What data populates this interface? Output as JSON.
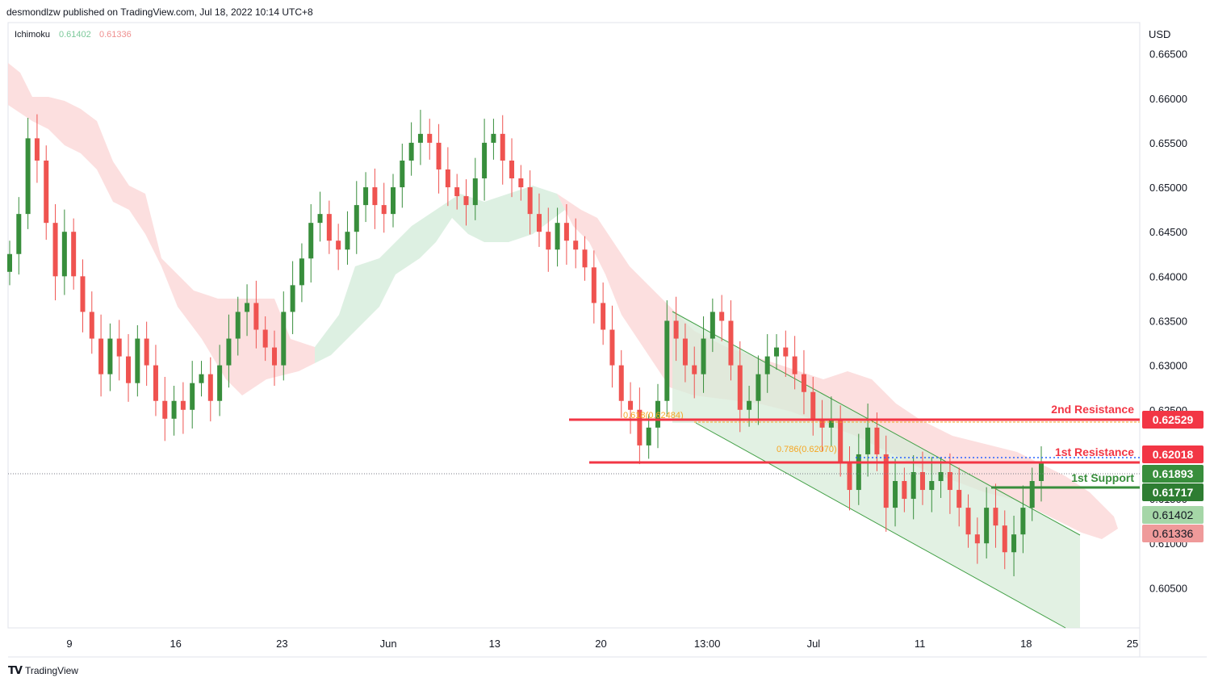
{
  "header": {
    "published": "desmondlzw published on TradingView.com, Jul 18, 2022 10:14 UTC+8"
  },
  "indicator": {
    "name": "Ichimoku",
    "val1": "0.61402",
    "val2": "0.61336"
  },
  "currency": "USD",
  "footer": {
    "brand": "TradingView"
  },
  "colors": {
    "up": "#26a69a",
    "upBody": "#388e3c",
    "down": "#ef5350",
    "cloudBull": "#d7eddd",
    "cloudBear": "#fbd9d9",
    "resistance": "#f23645",
    "support": "#388e3c",
    "channel": "#d8ecd9",
    "fib": "#f5a623"
  },
  "chart_data": {
    "type": "candlestick",
    "title": "",
    "ylim": [
      0.6005,
      0.6685
    ],
    "y_ticks": [
      "0.66500",
      "0.66000",
      "0.65500",
      "0.65000",
      "0.64500",
      "0.64000",
      "0.63500",
      "0.63000",
      "0.62500",
      "0.62000",
      "0.61500",
      "0.61000",
      "0.60500"
    ],
    "x_ticks": [
      "9",
      "16",
      "23",
      "Jun",
      "13",
      "20",
      "13:00",
      "Jul",
      "11",
      "18",
      "25"
    ],
    "levels": [
      {
        "label": "2nd Resistance",
        "value": 0.62529,
        "value_text": "0.62529",
        "kind": "resistance"
      },
      {
        "label": "1st Resistance",
        "value": 0.62018,
        "value_text": "0.62018",
        "kind": "resistance"
      },
      {
        "label": "1st Support",
        "value": 0.61717,
        "value_text": "0.61717",
        "kind": "support"
      }
    ],
    "price_tags": [
      {
        "value_text": "0.61893",
        "value": 0.61893,
        "kind": "current"
      },
      {
        "value_text": "0.61402",
        "value": 0.61402,
        "kind": "ichimoku1"
      },
      {
        "value_text": "0.61336",
        "value": 0.61336,
        "kind": "ichimoku2"
      }
    ],
    "fib_labels": [
      "0.618(0.62484)",
      "0.786(0.62070)"
    ],
    "close_series": [
      0.6425,
      0.647,
      0.6555,
      0.653,
      0.646,
      0.64,
      0.645,
      0.64,
      0.636,
      0.633,
      0.629,
      0.633,
      0.631,
      0.628,
      0.633,
      0.63,
      0.626,
      0.624,
      0.626,
      0.625,
      0.628,
      0.629,
      0.626,
      0.63,
      0.633,
      0.636,
      0.637,
      0.634,
      0.632,
      0.63,
      0.636,
      0.639,
      0.642,
      0.646,
      0.647,
      0.644,
      0.643,
      0.645,
      0.648,
      0.65,
      0.648,
      0.647,
      0.65,
      0.653,
      0.655,
      0.656,
      0.655,
      0.652,
      0.65,
      0.649,
      0.648,
      0.651,
      0.655,
      0.656,
      0.653,
      0.651,
      0.65,
      0.647,
      0.645,
      0.643,
      0.646,
      0.644,
      0.643,
      0.641,
      0.637,
      0.634,
      0.63,
      0.626,
      0.625,
      0.621,
      0.623,
      0.626,
      0.635,
      0.633,
      0.63,
      0.629,
      0.633,
      0.636,
      0.635,
      0.63,
      0.625,
      0.626,
      0.629,
      0.631,
      0.632,
      0.631,
      0.629,
      0.627,
      0.624,
      0.623,
      0.624,
      0.619,
      0.616,
      0.62,
      0.623,
      0.62,
      0.614,
      0.617,
      0.615,
      0.618,
      0.616,
      0.617,
      0.618,
      0.616,
      0.614,
      0.611,
      0.61,
      0.614,
      0.612,
      0.609,
      0.611,
      0.614,
      0.617,
      0.619
    ]
  }
}
